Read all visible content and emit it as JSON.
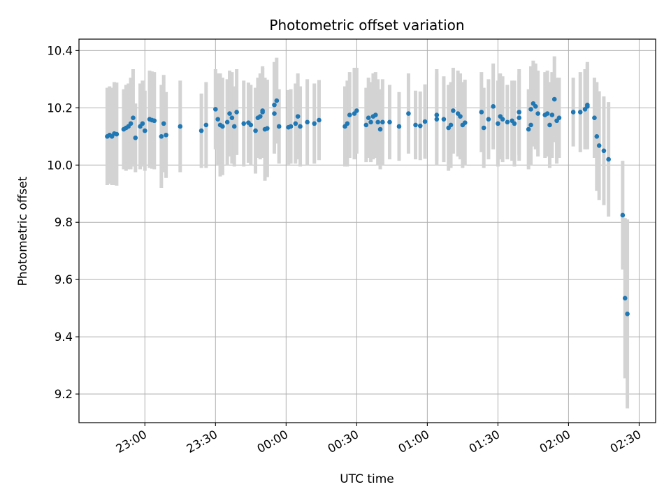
{
  "chart_data": {
    "type": "scatter",
    "title": "Photometric offset variation",
    "xlabel": "UTC time",
    "ylabel": "Photometric offset",
    "x_tick_labels": [
      "23:00",
      "23:30",
      "00:00",
      "00:30",
      "01:00",
      "01:30",
      "02:00",
      "02:30"
    ],
    "x_ticks": [
      "23:00",
      "23:30",
      "24:00",
      "24:30",
      "25:00",
      "25:30",
      "26:00",
      "26:30"
    ],
    "xlim": [
      "22:32",
      "26:37"
    ],
    "y_ticks": [
      9.2,
      9.4,
      9.6,
      9.8,
      10.0,
      10.2,
      10.4
    ],
    "y_tick_labels": [
      "9.2",
      "9.4",
      "9.6",
      "9.8",
      "10.0",
      "10.2",
      "10.4"
    ],
    "ylim": [
      9.1,
      10.44
    ],
    "grid": true,
    "point_color": "#1f77b4",
    "errorbar_color": "#d3d3d3",
    "points": [
      {
        "t": "22:44",
        "y": 10.1,
        "err": 0.17
      },
      {
        "t": "22:45",
        "y": 10.105,
        "err": 0.17
      },
      {
        "t": "22:46",
        "y": 10.1,
        "err": 0.17
      },
      {
        "t": "22:47",
        "y": 10.11,
        "err": 0.18
      },
      {
        "t": "22:48",
        "y": 10.108,
        "err": 0.18
      },
      {
        "t": "22:51",
        "y": 10.125,
        "err": 0.14
      },
      {
        "t": "22:52",
        "y": 10.13,
        "err": 0.15
      },
      {
        "t": "22:53",
        "y": 10.135,
        "err": 0.15
      },
      {
        "t": "22:54",
        "y": 10.145,
        "err": 0.16
      },
      {
        "t": "22:55",
        "y": 10.165,
        "err": 0.17
      },
      {
        "t": "22:56",
        "y": 10.095,
        "err": 0.12
      },
      {
        "t": "22:58",
        "y": 10.135,
        "err": 0.15
      },
      {
        "t": "22:59",
        "y": 10.145,
        "err": 0.15
      },
      {
        "t": "23:00",
        "y": 10.12,
        "err": 0.14
      },
      {
        "t": "23:02",
        "y": 10.16,
        "err": 0.17
      },
      {
        "t": "23:03",
        "y": 10.157,
        "err": 0.17
      },
      {
        "t": "23:04",
        "y": 10.155,
        "err": 0.17
      },
      {
        "t": "23:07",
        "y": 10.1,
        "err": 0.18
      },
      {
        "t": "23:08",
        "y": 10.145,
        "err": 0.17
      },
      {
        "t": "23:09",
        "y": 10.105,
        "err": 0.15
      },
      {
        "t": "23:15",
        "y": 10.135,
        "err": 0.16
      },
      {
        "t": "23:24",
        "y": 10.12,
        "err": 0.13
      },
      {
        "t": "23:26",
        "y": 10.14,
        "err": 0.15
      },
      {
        "t": "23:30",
        "y": 10.195,
        "err": 0.14
      },
      {
        "t": "23:31",
        "y": 10.16,
        "err": 0.16
      },
      {
        "t": "23:32",
        "y": 10.14,
        "err": 0.18
      },
      {
        "t": "23:33",
        "y": 10.135,
        "err": 0.17
      },
      {
        "t": "23:35",
        "y": 10.15,
        "err": 0.15
      },
      {
        "t": "23:36",
        "y": 10.18,
        "err": 0.15
      },
      {
        "t": "23:37",
        "y": 10.165,
        "err": 0.16
      },
      {
        "t": "23:38",
        "y": 10.135,
        "err": 0.14
      },
      {
        "t": "23:39",
        "y": 10.185,
        "err": 0.15
      },
      {
        "t": "23:42",
        "y": 10.145,
        "err": 0.15
      },
      {
        "t": "23:44",
        "y": 10.148,
        "err": 0.14
      },
      {
        "t": "23:45",
        "y": 10.14,
        "err": 0.14
      },
      {
        "t": "23:47",
        "y": 10.12,
        "err": 0.15
      },
      {
        "t": "23:48",
        "y": 10.165,
        "err": 0.14
      },
      {
        "t": "23:49",
        "y": 10.17,
        "err": 0.15
      },
      {
        "t": "23:50",
        "y": 10.185,
        "err": 0.16
      },
      {
        "t": "23:50",
        "y": 10.19,
        "err": 0.15
      },
      {
        "t": "23:51",
        "y": 10.125,
        "err": 0.18
      },
      {
        "t": "23:52",
        "y": 10.128,
        "err": 0.17
      },
      {
        "t": "23:55",
        "y": 10.18,
        "err": 0.14
      },
      {
        "t": "23:55",
        "y": 10.21,
        "err": 0.15
      },
      {
        "t": "23:56",
        "y": 10.225,
        "err": 0.15
      },
      {
        "t": "23:57",
        "y": 10.135,
        "err": 0.13
      },
      {
        "t": "24:01",
        "y": 10.132,
        "err": 0.13
      },
      {
        "t": "24:02",
        "y": 10.135,
        "err": 0.13
      },
      {
        "t": "24:04",
        "y": 10.145,
        "err": 0.14
      },
      {
        "t": "24:05",
        "y": 10.17,
        "err": 0.15
      },
      {
        "t": "24:06",
        "y": 10.135,
        "err": 0.14
      },
      {
        "t": "24:09",
        "y": 10.15,
        "err": 0.15
      },
      {
        "t": "24:12",
        "y": 10.145,
        "err": 0.14
      },
      {
        "t": "24:14",
        "y": 10.157,
        "err": 0.14
      },
      {
        "t": "24:25",
        "y": 10.135,
        "err": 0.14
      },
      {
        "t": "24:26",
        "y": 10.145,
        "err": 0.15
      },
      {
        "t": "24:27",
        "y": 10.175,
        "err": 0.15
      },
      {
        "t": "24:29",
        "y": 10.18,
        "err": 0.16
      },
      {
        "t": "24:30",
        "y": 10.19,
        "err": 0.15
      },
      {
        "t": "24:34",
        "y": 10.14,
        "err": 0.13
      },
      {
        "t": "24:35",
        "y": 10.165,
        "err": 0.14
      },
      {
        "t": "24:36",
        "y": 10.15,
        "err": 0.14
      },
      {
        "t": "24:37",
        "y": 10.17,
        "err": 0.15
      },
      {
        "t": "24:38",
        "y": 10.175,
        "err": 0.15
      },
      {
        "t": "24:39",
        "y": 10.15,
        "err": 0.15
      },
      {
        "t": "24:40",
        "y": 10.125,
        "err": 0.14
      },
      {
        "t": "24:41",
        "y": 10.15,
        "err": 0.15
      },
      {
        "t": "24:44",
        "y": 10.15,
        "err": 0.13
      },
      {
        "t": "24:48",
        "y": 10.135,
        "err": 0.12
      },
      {
        "t": "24:52",
        "y": 10.18,
        "err": 0.14
      },
      {
        "t": "24:55",
        "y": 10.14,
        "err": 0.12
      },
      {
        "t": "24:57",
        "y": 10.137,
        "err": 0.12
      },
      {
        "t": "24:59",
        "y": 10.152,
        "err": 0.13
      },
      {
        "t": "25:04",
        "y": 10.16,
        "err": 0.16
      },
      {
        "t": "25:04",
        "y": 10.175,
        "err": 0.16
      },
      {
        "t": "25:07",
        "y": 10.16,
        "err": 0.15
      },
      {
        "t": "25:09",
        "y": 10.13,
        "err": 0.15
      },
      {
        "t": "25:10",
        "y": 10.14,
        "err": 0.15
      },
      {
        "t": "25:11",
        "y": 10.19,
        "err": 0.15
      },
      {
        "t": "25:13",
        "y": 10.18,
        "err": 0.15
      },
      {
        "t": "25:14",
        "y": 10.17,
        "err": 0.15
      },
      {
        "t": "25:15",
        "y": 10.14,
        "err": 0.15
      },
      {
        "t": "25:16",
        "y": 10.148,
        "err": 0.15
      },
      {
        "t": "25:23",
        "y": 10.185,
        "err": 0.14
      },
      {
        "t": "25:24",
        "y": 10.13,
        "err": 0.14
      },
      {
        "t": "25:26",
        "y": 10.16,
        "err": 0.14
      },
      {
        "t": "25:28",
        "y": 10.205,
        "err": 0.15
      },
      {
        "t": "25:30",
        "y": 10.145,
        "err": 0.15
      },
      {
        "t": "25:31",
        "y": 10.17,
        "err": 0.15
      },
      {
        "t": "25:32",
        "y": 10.16,
        "err": 0.15
      },
      {
        "t": "25:34",
        "y": 10.15,
        "err": 0.13
      },
      {
        "t": "25:36",
        "y": 10.155,
        "err": 0.14
      },
      {
        "t": "25:37",
        "y": 10.145,
        "err": 0.15
      },
      {
        "t": "25:39",
        "y": 10.185,
        "err": 0.15
      },
      {
        "t": "25:39",
        "y": 10.165,
        "err": 0.15
      },
      {
        "t": "25:43",
        "y": 10.125,
        "err": 0.14
      },
      {
        "t": "25:44",
        "y": 10.14,
        "err": 0.14
      },
      {
        "t": "25:44",
        "y": 10.195,
        "err": 0.15
      },
      {
        "t": "25:45",
        "y": 10.215,
        "err": 0.15
      },
      {
        "t": "25:46",
        "y": 10.205,
        "err": 0.15
      },
      {
        "t": "25:47",
        "y": 10.18,
        "err": 0.15
      },
      {
        "t": "25:50",
        "y": 10.175,
        "err": 0.15
      },
      {
        "t": "25:51",
        "y": 10.18,
        "err": 0.15
      },
      {
        "t": "25:52",
        "y": 10.14,
        "err": 0.15
      },
      {
        "t": "25:53",
        "y": 10.175,
        "err": 0.15
      },
      {
        "t": "25:54",
        "y": 10.23,
        "err": 0.15
      },
      {
        "t": "25:55",
        "y": 10.155,
        "err": 0.15
      },
      {
        "t": "25:56",
        "y": 10.165,
        "err": 0.14
      },
      {
        "t": "26:02",
        "y": 10.185,
        "err": 0.12
      },
      {
        "t": "26:05",
        "y": 10.185,
        "err": 0.14
      },
      {
        "t": "26:07",
        "y": 10.195,
        "err": 0.14
      },
      {
        "t": "26:08",
        "y": 10.205,
        "err": 0.15
      },
      {
        "t": "26:08",
        "y": 10.21,
        "err": 0.15
      },
      {
        "t": "26:11",
        "y": 10.165,
        "err": 0.14
      },
      {
        "t": "26:12",
        "y": 10.1,
        "err": 0.19
      },
      {
        "t": "26:13",
        "y": 10.068,
        "err": 0.19
      },
      {
        "t": "26:15",
        "y": 10.05,
        "err": 0.19
      },
      {
        "t": "26:17",
        "y": 10.02,
        "err": 0.2
      },
      {
        "t": "26:23",
        "y": 9.825,
        "err": 0.19
      },
      {
        "t": "26:24",
        "y": 9.535,
        "err": 0.28
      },
      {
        "t": "26:25",
        "y": 9.48,
        "err": 0.33
      }
    ]
  }
}
